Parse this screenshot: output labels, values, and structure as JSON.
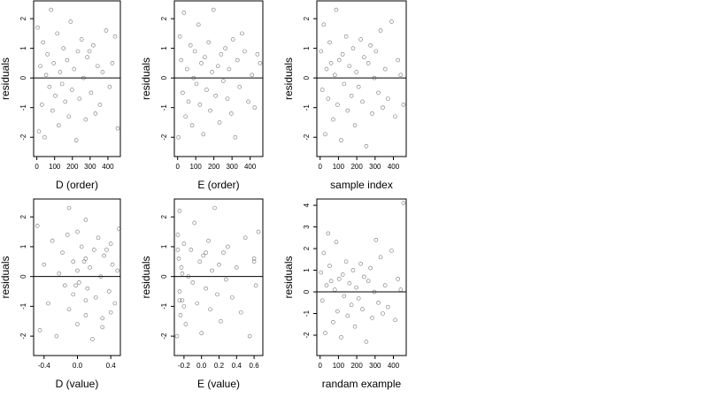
{
  "chart_data": [
    {
      "type": "scatter",
      "xlabel": "D (order)",
      "ylabel": "residuals",
      "x": [
        5,
        12,
        20,
        28,
        35,
        44,
        52,
        60,
        71,
        80,
        88,
        95,
        104,
        115,
        123,
        131,
        142,
        150,
        160,
        171,
        180,
        190,
        198,
        210,
        222,
        231,
        240,
        252,
        263,
        275,
        284,
        296,
        305,
        318,
        330,
        342,
        355,
        370,
        390,
        410,
        425,
        440,
        455
      ],
      "y": [
        1.7,
        -1.8,
        0.4,
        -0.9,
        1.2,
        -2.0,
        0.1,
        0.8,
        -0.3,
        2.3,
        -1.1,
        0.5,
        -0.6,
        1.5,
        -1.6,
        0.2,
        -0.2,
        1.0,
        -0.8,
        0.6,
        -1.3,
        1.9,
        -0.4,
        0.3,
        -2.1,
        0.9,
        -0.7,
        1.3,
        0.0,
        -1.4,
        0.7,
        0.9,
        -0.5,
        1.1,
        -1.2,
        0.4,
        -0.9,
        0.2,
        1.6,
        -0.3,
        0.5,
        1.4,
        -1.7
      ],
      "xlim": [
        -18,
        470
      ],
      "ylim": [
        -2.65,
        2.6
      ],
      "xticks": [
        0,
        100,
        200,
        300,
        400
      ],
      "yticks": [
        -2,
        -1,
        0,
        1,
        2
      ],
      "hline": 0
    },
    {
      "type": "scatter",
      "xlabel": "E (order)",
      "ylabel": "residuals",
      "x": [
        5,
        12,
        20,
        28,
        35,
        44,
        52,
        60,
        71,
        80,
        88,
        95,
        104,
        115,
        123,
        131,
        142,
        150,
        160,
        171,
        180,
        190,
        198,
        210,
        222,
        231,
        240,
        252,
        263,
        275,
        284,
        296,
        305,
        318,
        330,
        342,
        355,
        370,
        390,
        410,
        425,
        440,
        455
      ],
      "y": [
        -2.0,
        1.4,
        0.6,
        -0.5,
        2.2,
        -1.3,
        0.3,
        -0.8,
        1.1,
        -1.6,
        0.0,
        0.9,
        -0.2,
        1.8,
        -0.9,
        0.5,
        -1.9,
        0.7,
        -0.4,
        1.2,
        -1.1,
        0.2,
        2.3,
        -0.6,
        0.4,
        -1.5,
        0.8,
        -0.1,
        1.0,
        -0.7,
        0.3,
        -1.2,
        1.3,
        -2.0,
        0.6,
        -0.3,
        1.5,
        0.9,
        -0.8,
        0.1,
        -1.0,
        0.8,
        0.5
      ],
      "xlim": [
        -18,
        470
      ],
      "ylim": [
        -2.65,
        2.6
      ],
      "xticks": [
        0,
        100,
        200,
        300,
        400
      ],
      "yticks": [
        -2,
        -1,
        0,
        1,
        2
      ],
      "hline": 0
    },
    {
      "type": "scatter",
      "xlabel": "sample index",
      "ylabel": "residuals",
      "x": [
        5,
        12,
        20,
        28,
        35,
        44,
        52,
        60,
        71,
        80,
        88,
        95,
        104,
        115,
        123,
        131,
        142,
        150,
        160,
        171,
        180,
        190,
        198,
        210,
        222,
        231,
        240,
        252,
        263,
        275,
        284,
        296,
        305,
        318,
        330,
        342,
        355,
        370,
        390,
        410,
        425,
        440,
        455
      ],
      "y": [
        0.9,
        -0.4,
        1.8,
        -1.9,
        0.3,
        -0.7,
        1.2,
        0.5,
        -1.4,
        0.1,
        2.3,
        -0.9,
        0.6,
        -2.1,
        0.8,
        -0.2,
        1.4,
        -1.1,
        0.4,
        -0.6,
        1.0,
        -1.6,
        0.2,
        -0.3,
        1.3,
        -0.8,
        0.7,
        -2.3,
        0.5,
        1.1,
        -1.2,
        0.0,
        0.9,
        -0.5,
        1.6,
        -1.0,
        0.3,
        -0.7,
        1.9,
        -1.3,
        0.6,
        0.1,
        -0.9
      ],
      "xlim": [
        -18,
        470
      ],
      "ylim": [
        -2.65,
        2.6
      ],
      "xticks": [
        0,
        100,
        200,
        300,
        400
      ],
      "yticks": [
        -2,
        -1,
        0,
        1,
        2
      ],
      "hline": 0
    },
    {
      "type": "scatter",
      "xlabel": "D (value)",
      "ylabel": "residuals",
      "x": [
        -0.48,
        -0.45,
        -0.4,
        -0.35,
        -0.3,
        -0.25,
        -0.22,
        -0.18,
        -0.15,
        -0.1,
        -0.1,
        -0.05,
        -0.05,
        0.0,
        0.0,
        0.0,
        0.02,
        0.05,
        0.1,
        0.1,
        0.1,
        0.1,
        0.12,
        0.15,
        0.18,
        0.2,
        0.22,
        0.25,
        0.28,
        0.3,
        0.32,
        0.35,
        0.38,
        0.4,
        0.4,
        0.42,
        0.45,
        0.48,
        0.5,
        -0.02,
        0.08,
        -0.12,
        0.3
      ],
      "y": [
        1.7,
        -1.8,
        0.4,
        -0.9,
        1.2,
        -2.0,
        0.1,
        0.8,
        -0.3,
        2.3,
        -1.1,
        0.5,
        -0.6,
        1.5,
        -1.6,
        0.2,
        -0.2,
        1.0,
        -0.8,
        0.6,
        -1.3,
        1.9,
        -0.4,
        0.3,
        -2.1,
        0.9,
        -0.7,
        1.3,
        0.0,
        -1.4,
        0.7,
        0.9,
        -0.5,
        1.1,
        -1.2,
        0.4,
        -0.9,
        0.2,
        1.6,
        -0.3,
        0.5,
        1.4,
        -1.7
      ],
      "xlim": [
        -0.525,
        0.515
      ],
      "ylim": [
        -2.65,
        2.6
      ],
      "xticks": [
        -0.4,
        {
          "value": 0,
          "label": "0.0"
        },
        0.4
      ],
      "yticks": [
        -2,
        -1,
        0,
        1,
        2
      ],
      "hline": 0
    },
    {
      "type": "scatter",
      "xlabel": "E (value)",
      "ylabel": "residuals",
      "x": [
        -0.28,
        -0.27,
        -0.26,
        -0.25,
        -0.25,
        -0.24,
        -0.23,
        -0.22,
        -0.2,
        -0.18,
        -0.15,
        -0.12,
        -0.1,
        -0.08,
        -0.05,
        -0.02,
        0.0,
        0.02,
        0.05,
        0.08,
        0.1,
        0.12,
        0.15,
        0.18,
        0.2,
        0.22,
        0.25,
        0.28,
        0.3,
        0.35,
        0.4,
        0.45,
        0.5,
        0.55,
        0.6,
        0.62,
        0.65,
        -0.27,
        -0.25,
        -0.22,
        -0.2,
        0.05,
        0.6
      ],
      "y": [
        -2.0,
        1.4,
        0.6,
        -0.5,
        2.2,
        -1.3,
        0.3,
        -0.8,
        1.1,
        -1.6,
        0.0,
        0.9,
        -0.2,
        1.8,
        -0.9,
        0.5,
        -1.9,
        0.7,
        -0.4,
        1.2,
        -1.1,
        0.2,
        2.3,
        -0.6,
        0.4,
        -1.5,
        0.8,
        -0.1,
        1.0,
        -0.7,
        0.3,
        -1.2,
        1.3,
        -2.0,
        0.6,
        -0.3,
        1.5,
        0.9,
        -0.8,
        0.1,
        -1.0,
        0.8,
        0.5
      ],
      "xlim": [
        -0.31,
        0.7
      ],
      "ylim": [
        -2.65,
        2.6
      ],
      "xticks": [
        -0.2,
        {
          "value": 0,
          "label": "0.0"
        },
        0.2,
        0.4,
        0.6
      ],
      "yticks": [
        -2,
        -1,
        0,
        1,
        2
      ],
      "hline": 0
    },
    {
      "type": "scatter",
      "xlabel": "randam example",
      "ylabel": "residuals",
      "x": [
        5,
        12,
        20,
        28,
        35,
        44,
        52,
        60,
        71,
        80,
        88,
        95,
        104,
        115,
        123,
        131,
        142,
        150,
        160,
        171,
        180,
        190,
        198,
        210,
        222,
        231,
        240,
        252,
        263,
        275,
        284,
        296,
        305,
        318,
        330,
        342,
        355,
        370,
        390,
        410,
        425,
        440,
        455
      ],
      "y": [
        0.9,
        -0.4,
        1.8,
        -1.9,
        0.3,
        2.7,
        1.2,
        0.5,
        -1.4,
        0.1,
        2.3,
        -0.9,
        0.6,
        -2.1,
        0.8,
        -0.2,
        1.4,
        -1.1,
        0.4,
        -0.6,
        1.0,
        -1.6,
        0.2,
        -0.3,
        1.3,
        -0.8,
        0.7,
        -2.3,
        0.5,
        1.1,
        -1.2,
        0.0,
        2.4,
        -0.5,
        1.6,
        -1.0,
        0.3,
        -0.7,
        1.9,
        -1.3,
        0.6,
        0.1,
        4.1
      ],
      "xlim": [
        -18,
        470
      ],
      "ylim": [
        -2.94,
        4.29
      ],
      "xticks": [
        0,
        100,
        200,
        300,
        400
      ],
      "yticks": [
        -2,
        -1,
        0,
        1,
        2,
        3,
        4
      ],
      "hline": 0
    }
  ]
}
